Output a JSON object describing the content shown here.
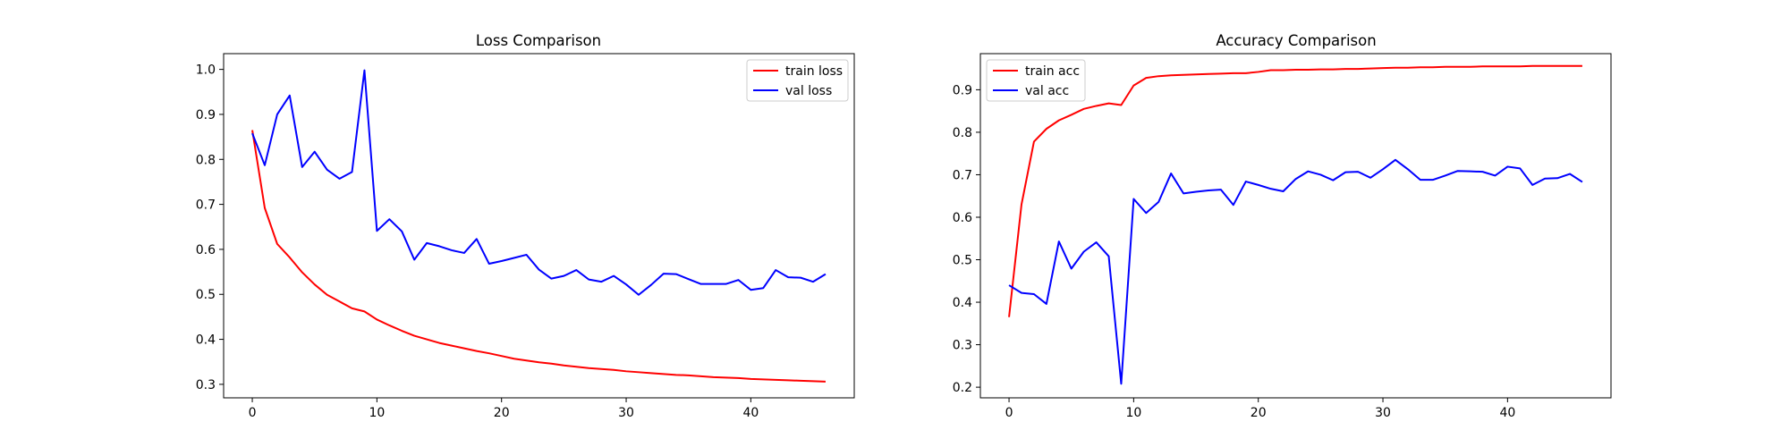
{
  "chart_data": [
    {
      "type": "line",
      "title": "Loss Comparison",
      "xlabel": "",
      "ylabel": "",
      "xlim": [
        -2.3,
        48.3
      ],
      "ylim": [
        0.27,
        1.035
      ],
      "xticks": [
        0,
        10,
        20,
        30,
        40
      ],
      "yticks": [
        0.3,
        0.4,
        0.5,
        0.6,
        0.7,
        0.8,
        0.9,
        1.0
      ],
      "ytick_labels": [
        "0.3",
        "0.4",
        "0.5",
        "0.6",
        "0.7",
        "0.8",
        "0.9",
        "1.0"
      ],
      "grid": false,
      "legend_position": "top-right",
      "x": [
        0,
        1,
        2,
        3,
        4,
        5,
        6,
        7,
        8,
        9,
        10,
        11,
        12,
        13,
        14,
        15,
        16,
        17,
        18,
        19,
        20,
        21,
        22,
        23,
        24,
        25,
        26,
        27,
        28,
        29,
        30,
        31,
        32,
        33,
        34,
        35,
        36,
        37,
        38,
        39,
        40,
        41,
        42,
        43,
        44,
        45,
        46
      ],
      "series": [
        {
          "name": "train loss",
          "color": "#ff0000",
          "values": [
            0.865,
            0.692,
            0.612,
            0.582,
            0.549,
            0.522,
            0.499,
            0.484,
            0.469,
            0.462,
            0.444,
            0.431,
            0.419,
            0.408,
            0.4,
            0.392,
            0.386,
            0.38,
            0.374,
            0.369,
            0.363,
            0.357,
            0.353,
            0.349,
            0.346,
            0.342,
            0.339,
            0.336,
            0.334,
            0.332,
            0.329,
            0.327,
            0.325,
            0.323,
            0.321,
            0.32,
            0.318,
            0.316,
            0.315,
            0.314,
            0.312,
            0.311,
            0.31,
            0.309,
            0.308,
            0.307,
            0.306
          ]
        },
        {
          "name": "val loss",
          "color": "#0000ff",
          "values": [
            0.858,
            0.787,
            0.9,
            0.942,
            0.783,
            0.817,
            0.777,
            0.757,
            0.772,
            0.998,
            0.641,
            0.667,
            0.64,
            0.577,
            0.614,
            0.607,
            0.598,
            0.592,
            0.623,
            0.568,
            0.574,
            0.581,
            0.588,
            0.555,
            0.535,
            0.541,
            0.554,
            0.533,
            0.528,
            0.541,
            0.522,
            0.499,
            0.521,
            0.546,
            0.545,
            0.534,
            0.523,
            0.523,
            0.523,
            0.532,
            0.51,
            0.514,
            0.554,
            0.538,
            0.537,
            0.528,
            0.545
          ]
        }
      ]
    },
    {
      "type": "line",
      "title": "Accuracy Comparison",
      "xlabel": "",
      "ylabel": "",
      "xlim": [
        -2.3,
        48.3
      ],
      "ylim": [
        0.175,
        0.985
      ],
      "xticks": [
        0,
        10,
        20,
        30,
        40
      ],
      "yticks": [
        0.2,
        0.3,
        0.4,
        0.5,
        0.6,
        0.7,
        0.8,
        0.9
      ],
      "ytick_labels": [
        "0.2",
        "0.3",
        "0.4",
        "0.5",
        "0.6",
        "0.7",
        "0.8",
        "0.9"
      ],
      "grid": false,
      "legend_position": "top-left",
      "x": [
        0,
        1,
        2,
        3,
        4,
        5,
        6,
        7,
        8,
        9,
        10,
        11,
        12,
        13,
        14,
        15,
        16,
        17,
        18,
        19,
        20,
        21,
        22,
        23,
        24,
        25,
        26,
        27,
        28,
        29,
        30,
        31,
        32,
        33,
        34,
        35,
        36,
        37,
        38,
        39,
        40,
        41,
        42,
        43,
        44,
        45,
        46
      ],
      "series": [
        {
          "name": "train acc",
          "color": "#ff0000",
          "values": [
            0.365,
            0.63,
            0.778,
            0.808,
            0.828,
            0.841,
            0.855,
            0.862,
            0.868,
            0.864,
            0.91,
            0.928,
            0.932,
            0.934,
            0.935,
            0.936,
            0.937,
            0.938,
            0.939,
            0.939,
            0.942,
            0.946,
            0.946,
            0.947,
            0.947,
            0.948,
            0.948,
            0.949,
            0.949,
            0.95,
            0.951,
            0.952,
            0.952,
            0.953,
            0.953,
            0.954,
            0.954,
            0.954,
            0.955,
            0.955,
            0.955,
            0.955,
            0.956,
            0.956,
            0.956,
            0.956,
            0.956
          ]
        },
        {
          "name": "val acc",
          "color": "#0000ff",
          "values": [
            0.44,
            0.422,
            0.419,
            0.396,
            0.543,
            0.479,
            0.519,
            0.541,
            0.508,
            0.208,
            0.643,
            0.61,
            0.636,
            0.703,
            0.656,
            0.66,
            0.663,
            0.665,
            0.629,
            0.684,
            0.676,
            0.667,
            0.661,
            0.69,
            0.708,
            0.7,
            0.687,
            0.706,
            0.707,
            0.693,
            0.713,
            0.735,
            0.713,
            0.688,
            0.688,
            0.698,
            0.709,
            0.708,
            0.707,
            0.698,
            0.719,
            0.715,
            0.676,
            0.691,
            0.692,
            0.702,
            0.683
          ]
        }
      ]
    }
  ]
}
